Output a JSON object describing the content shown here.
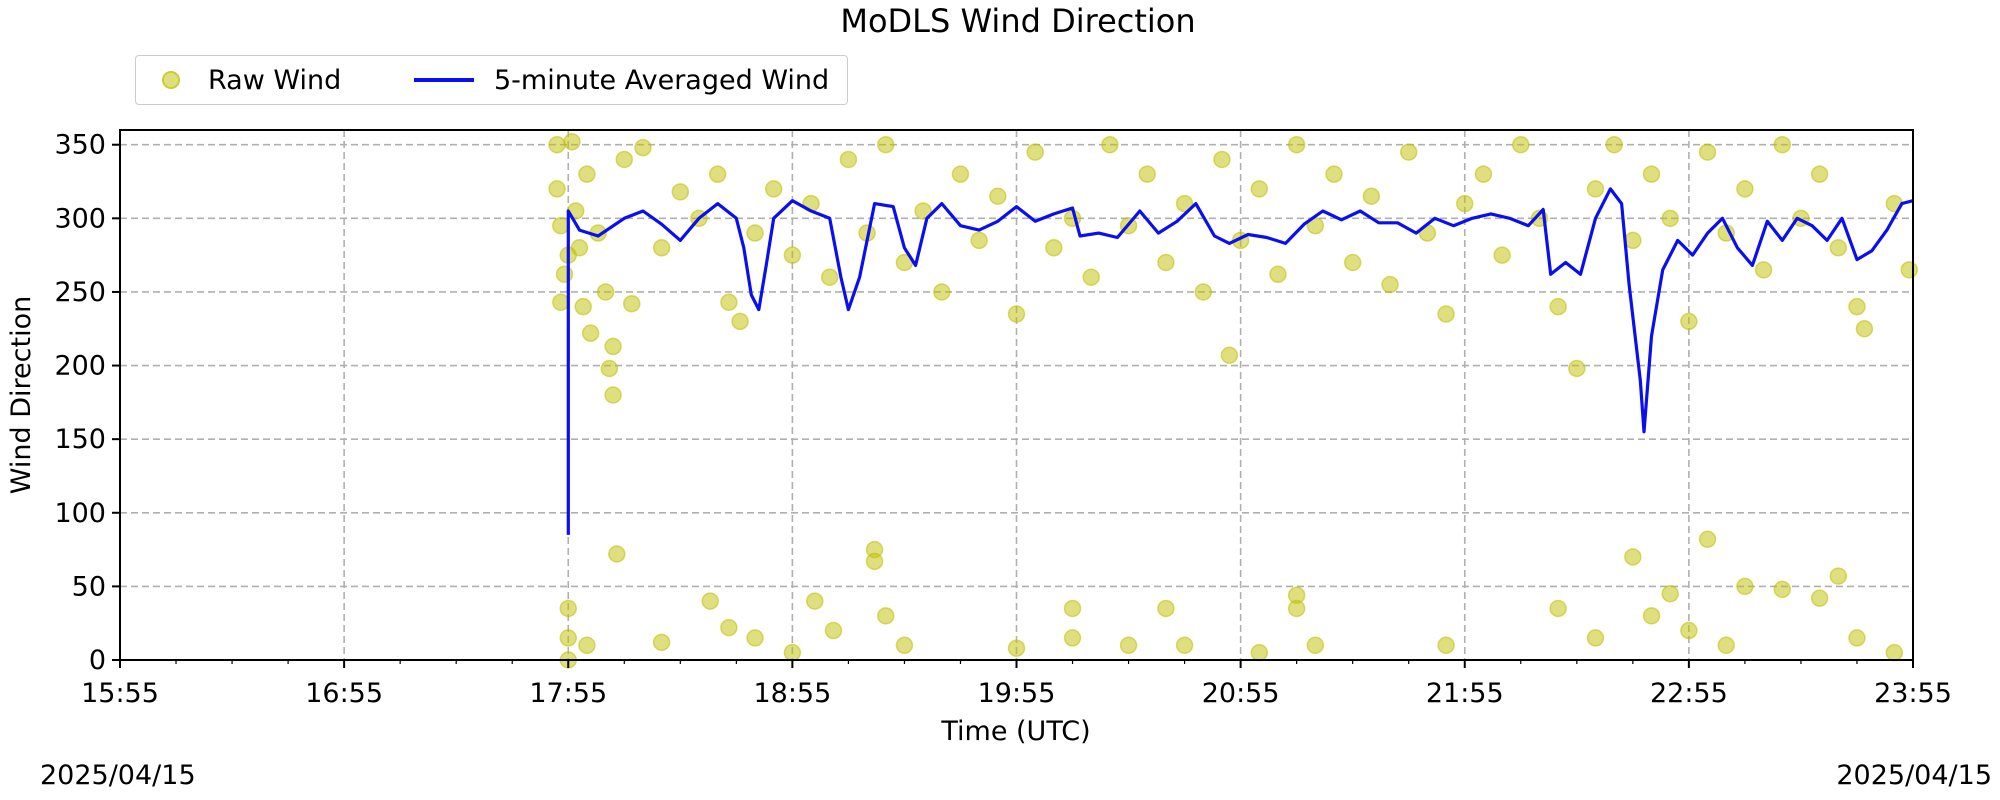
{
  "chart_data": {
    "type": "scatter",
    "title": "MoDLS Wind Direction",
    "xlabel": "Time (UTC)",
    "ylabel": "Wind Direction",
    "xlim": [
      "15:55",
      "23:55"
    ],
    "ylim": [
      0,
      360
    ],
    "x_ticks": [
      "15:55",
      "16:55",
      "17:55",
      "18:55",
      "19:55",
      "20:55",
      "21:55",
      "22:55",
      "23:55"
    ],
    "y_ticks": [
      "0",
      "50",
      "100",
      "150",
      "200",
      "250",
      "300",
      "350"
    ],
    "grid": true,
    "legend_position": "top-left, above plot",
    "date_left": "2025/04/15",
    "date_right": "2025/04/15",
    "series": [
      {
        "name": "Raw Wind",
        "kind": "scatter",
        "color": "#bfbf00",
        "points": [
          [
            "17:52",
            350
          ],
          [
            "17:52",
            320
          ],
          [
            "17:53",
            295
          ],
          [
            "17:53",
            243
          ],
          [
            "17:54",
            262
          ],
          [
            "17:55",
            275
          ],
          [
            "17:56",
            352
          ],
          [
            "17:57",
            305
          ],
          [
            "17:58",
            280
          ],
          [
            "17:59",
            240
          ],
          [
            "18:00",
            330
          ],
          [
            "18:01",
            222
          ],
          [
            "18:03",
            290
          ],
          [
            "18:05",
            250
          ],
          [
            "18:06",
            198
          ],
          [
            "18:07",
            213
          ],
          [
            "18:07",
            180
          ],
          [
            "18:08",
            72
          ],
          [
            "18:10",
            340
          ],
          [
            "18:12",
            242
          ],
          [
            "18:15",
            348
          ],
          [
            "18:20",
            280
          ],
          [
            "18:25",
            318
          ],
          [
            "18:30",
            300
          ],
          [
            "18:35",
            330
          ],
          [
            "18:38",
            243
          ],
          [
            "18:41",
            230
          ],
          [
            "18:45",
            290
          ],
          [
            "18:50",
            320
          ],
          [
            "18:55",
            275
          ],
          [
            "19:00",
            310
          ],
          [
            "19:05",
            260
          ],
          [
            "19:10",
            340
          ],
          [
            "19:15",
            290
          ],
          [
            "19:20",
            350
          ],
          [
            "19:25",
            270
          ],
          [
            "19:30",
            305
          ],
          [
            "19:35",
            250
          ],
          [
            "19:40",
            330
          ],
          [
            "19:45",
            285
          ],
          [
            "19:50",
            315
          ],
          [
            "19:55",
            235
          ],
          [
            "20:00",
            345
          ],
          [
            "20:05",
            280
          ],
          [
            "20:10",
            300
          ],
          [
            "20:15",
            260
          ],
          [
            "20:20",
            350
          ],
          [
            "20:25",
            295
          ],
          [
            "20:30",
            330
          ],
          [
            "20:35",
            270
          ],
          [
            "20:40",
            310
          ],
          [
            "20:45",
            250
          ],
          [
            "20:50",
            340
          ],
          [
            "20:52",
            207
          ],
          [
            "20:55",
            285
          ],
          [
            "21:00",
            320
          ],
          [
            "21:05",
            262
          ],
          [
            "21:10",
            350
          ],
          [
            "21:15",
            295
          ],
          [
            "21:20",
            330
          ],
          [
            "21:25",
            270
          ],
          [
            "21:30",
            315
          ],
          [
            "21:35",
            255
          ],
          [
            "21:40",
            345
          ],
          [
            "21:45",
            290
          ],
          [
            "21:50",
            235
          ],
          [
            "21:55",
            310
          ],
          [
            "22:00",
            330
          ],
          [
            "22:05",
            275
          ],
          [
            "22:10",
            350
          ],
          [
            "22:15",
            300
          ],
          [
            "22:20",
            240
          ],
          [
            "22:25",
            198
          ],
          [
            "22:30",
            320
          ],
          [
            "22:35",
            350
          ],
          [
            "22:40",
            285
          ],
          [
            "22:45",
            330
          ],
          [
            "22:50",
            300
          ],
          [
            "22:55",
            230
          ],
          [
            "23:00",
            345
          ],
          [
            "23:05",
            290
          ],
          [
            "23:10",
            320
          ],
          [
            "23:15",
            265
          ],
          [
            "23:20",
            350
          ],
          [
            "23:25",
            300
          ],
          [
            "23:30",
            330
          ],
          [
            "23:35",
            280
          ],
          [
            "23:40",
            240
          ],
          [
            "23:42",
            225
          ],
          [
            "23:50",
            310
          ],
          [
            "23:54",
            265
          ],
          [
            "17:55",
            35
          ],
          [
            "17:55",
            15
          ],
          [
            "17:55",
            0
          ],
          [
            "18:00",
            10
          ],
          [
            "18:20",
            12
          ],
          [
            "18:33",
            40
          ],
          [
            "18:38",
            22
          ],
          [
            "18:45",
            15
          ],
          [
            "18:55",
            5
          ],
          [
            "19:01",
            40
          ],
          [
            "19:06",
            20
          ],
          [
            "19:17",
            75
          ],
          [
            "19:17",
            67
          ],
          [
            "19:20",
            30
          ],
          [
            "19:25",
            10
          ],
          [
            "19:55",
            8
          ],
          [
            "20:10",
            35
          ],
          [
            "20:10",
            15
          ],
          [
            "20:25",
            10
          ],
          [
            "20:35",
            35
          ],
          [
            "20:40",
            10
          ],
          [
            "21:00",
            5
          ],
          [
            "21:10",
            44
          ],
          [
            "21:10",
            35
          ],
          [
            "21:15",
            10
          ],
          [
            "21:50",
            10
          ],
          [
            "22:20",
            35
          ],
          [
            "22:30",
            15
          ],
          [
            "22:40",
            70
          ],
          [
            "22:45",
            30
          ],
          [
            "22:50",
            45
          ],
          [
            "22:55",
            20
          ],
          [
            "23:00",
            82
          ],
          [
            "23:05",
            10
          ],
          [
            "23:10",
            50
          ],
          [
            "23:20",
            48
          ],
          [
            "23:30",
            42
          ],
          [
            "23:35",
            57
          ],
          [
            "23:40",
            15
          ],
          [
            "23:50",
            5
          ]
        ]
      },
      {
        "name": "5-minute Averaged Wind",
        "kind": "line",
        "color": "#0a0ff0",
        "points": [
          [
            "17:55",
            85
          ],
          [
            "17:55",
            305
          ],
          [
            "17:58",
            292
          ],
          [
            "18:03",
            288
          ],
          [
            "18:10",
            300
          ],
          [
            "18:15",
            305
          ],
          [
            "18:20",
            296
          ],
          [
            "18:25",
            285
          ],
          [
            "18:30",
            300
          ],
          [
            "18:35",
            310
          ],
          [
            "18:40",
            300
          ],
          [
            "18:42",
            280
          ],
          [
            "18:44",
            248
          ],
          [
            "18:46",
            238
          ],
          [
            "18:48",
            268
          ],
          [
            "18:50",
            300
          ],
          [
            "18:55",
            312
          ],
          [
            "19:00",
            305
          ],
          [
            "19:05",
            300
          ],
          [
            "19:08",
            260
          ],
          [
            "19:10",
            238
          ],
          [
            "19:13",
            260
          ],
          [
            "19:17",
            310
          ],
          [
            "19:22",
            308
          ],
          [
            "19:25",
            280
          ],
          [
            "19:28",
            268
          ],
          [
            "19:31",
            300
          ],
          [
            "19:35",
            310
          ],
          [
            "19:40",
            295
          ],
          [
            "19:45",
            292
          ],
          [
            "19:50",
            298
          ],
          [
            "19:55",
            308
          ],
          [
            "20:00",
            298
          ],
          [
            "20:05",
            303
          ],
          [
            "20:10",
            307
          ],
          [
            "20:12",
            288
          ],
          [
            "20:17",
            290
          ],
          [
            "20:22",
            287
          ],
          [
            "20:28",
            305
          ],
          [
            "20:33",
            290
          ],
          [
            "20:38",
            298
          ],
          [
            "20:43",
            310
          ],
          [
            "20:48",
            288
          ],
          [
            "20:52",
            283
          ],
          [
            "20:57",
            289
          ],
          [
            "21:02",
            287
          ],
          [
            "21:07",
            283
          ],
          [
            "21:12",
            296
          ],
          [
            "21:17",
            305
          ],
          [
            "21:22",
            299
          ],
          [
            "21:27",
            305
          ],
          [
            "21:32",
            297
          ],
          [
            "21:37",
            297
          ],
          [
            "21:42",
            290
          ],
          [
            "21:47",
            300
          ],
          [
            "21:52",
            295
          ],
          [
            "21:57",
            300
          ],
          [
            "22:02",
            303
          ],
          [
            "22:07",
            300
          ],
          [
            "22:12",
            295
          ],
          [
            "22:16",
            306
          ],
          [
            "22:18",
            262
          ],
          [
            "22:22",
            270
          ],
          [
            "22:26",
            262
          ],
          [
            "22:30",
            300
          ],
          [
            "22:34",
            320
          ],
          [
            "22:37",
            310
          ],
          [
            "22:39",
            255
          ],
          [
            "22:42",
            190
          ],
          [
            "22:43",
            155
          ],
          [
            "22:45",
            220
          ],
          [
            "22:48",
            265
          ],
          [
            "22:52",
            285
          ],
          [
            "22:56",
            275
          ],
          [
            "23:00",
            290
          ],
          [
            "23:04",
            300
          ],
          [
            "23:08",
            280
          ],
          [
            "23:12",
            268
          ],
          [
            "23:16",
            298
          ],
          [
            "23:20",
            285
          ],
          [
            "23:24",
            300
          ],
          [
            "23:28",
            295
          ],
          [
            "23:32",
            285
          ],
          [
            "23:36",
            300
          ],
          [
            "23:40",
            272
          ],
          [
            "23:44",
            278
          ],
          [
            "23:48",
            292
          ],
          [
            "23:52",
            310
          ],
          [
            "23:55",
            312
          ]
        ]
      }
    ]
  }
}
